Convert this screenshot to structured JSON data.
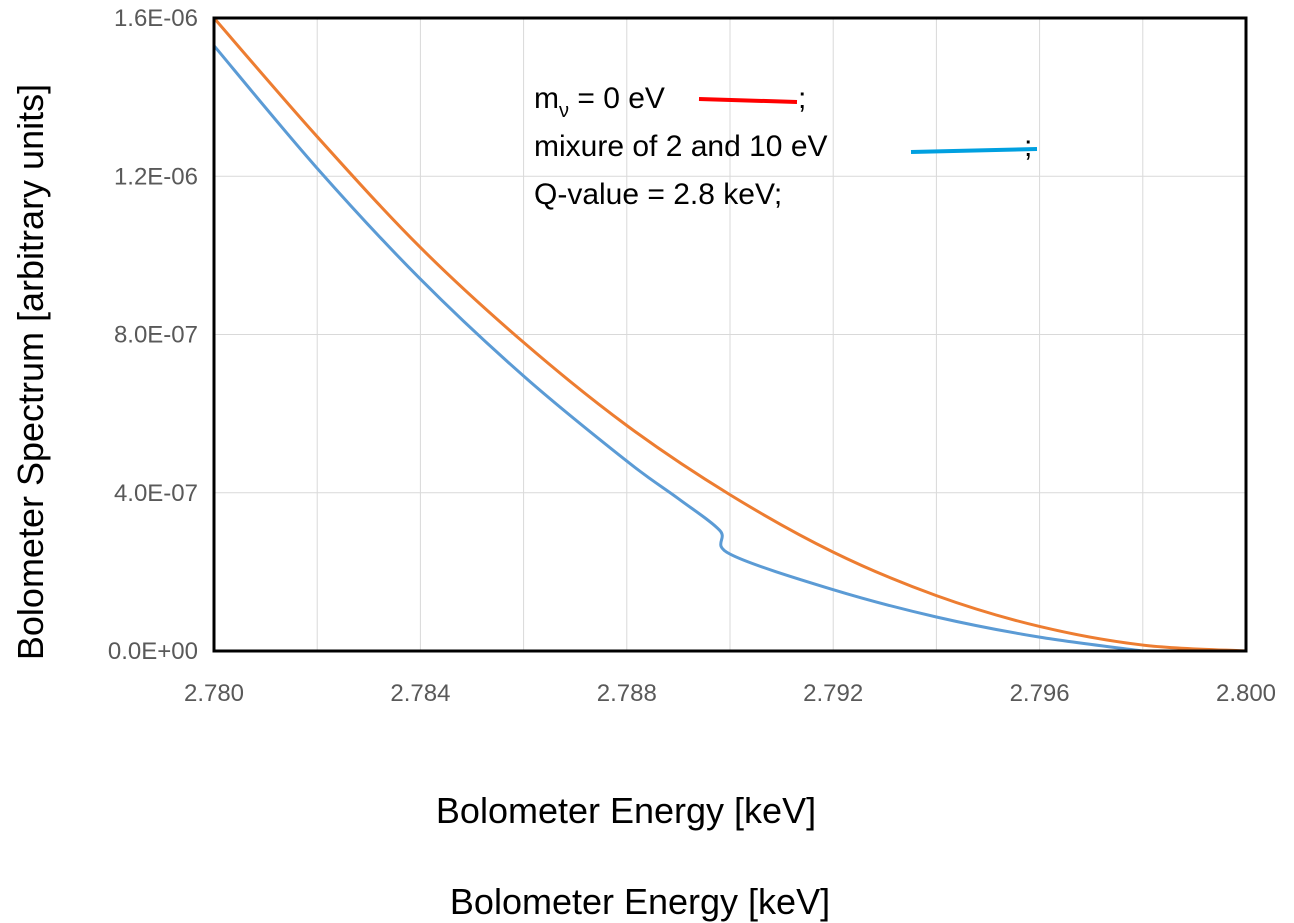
{
  "chart_data": {
    "type": "line",
    "title": "",
    "xlabel": "Bolometer Energy [keV]",
    "xlabel_repeat": "Bolometer Energy [keV]",
    "ylabel": "Bolometer Spectrum [arbitrary units]",
    "xlim": [
      2.78,
      2.8
    ],
    "ylim": [
      0,
      1.6e-06
    ],
    "x_ticks": [
      "2.780",
      "2.784",
      "2.788",
      "2.792",
      "2.796",
      "2.800"
    ],
    "x_tick_values": [
      2.78,
      2.784,
      2.788,
      2.792,
      2.796,
      2.8
    ],
    "y_ticks": [
      "0.0E+00",
      "4.0E-07",
      "8.0E-07",
      "1.2E-06",
      "1.6E-06"
    ],
    "y_tick_values": [
      0,
      4e-07,
      8e-07,
      1.2e-06,
      1.6e-06
    ],
    "grid": true,
    "legend_text": {
      "line1_main": "m",
      "line1_sub": "ν",
      "line1_rest": " = 0 eV",
      "line1_end": ";",
      "line2": "mixure of 2 and 10 eV",
      "line2_end": ";",
      "line3": "Q-value = 2.8 keV;"
    },
    "legend_colors": {
      "line1": "#ff0000",
      "line2": "#00a0e0"
    },
    "series": [
      {
        "color": "#ed7d31",
        "x": [
          2.78,
          2.782,
          2.784,
          2.786,
          2.788,
          2.79,
          2.792,
          2.794,
          2.796,
          2.798,
          2.8
        ],
        "y": [
          1.6e-06,
          1.3e-06,
          1.02e-06,
          7.8e-07,
          5.7e-07,
          3.95e-07,
          2.5e-07,
          1.4e-07,
          6.2e-08,
          1.5e-08,
          0
        ]
      },
      {
        "color": "#5b9bd5",
        "x": [
          2.78,
          2.782,
          2.784,
          2.786,
          2.788,
          2.789,
          2.7898,
          2.79,
          2.792,
          2.794,
          2.796,
          2.798
        ],
        "y": [
          1.53e-06,
          1.22e-06,
          9.4e-07,
          6.95e-07,
          4.8e-07,
          3.85e-07,
          3.05e-07,
          2.45e-07,
          1.55e-07,
          8.6e-08,
          3.5e-08,
          0
        ]
      }
    ]
  }
}
